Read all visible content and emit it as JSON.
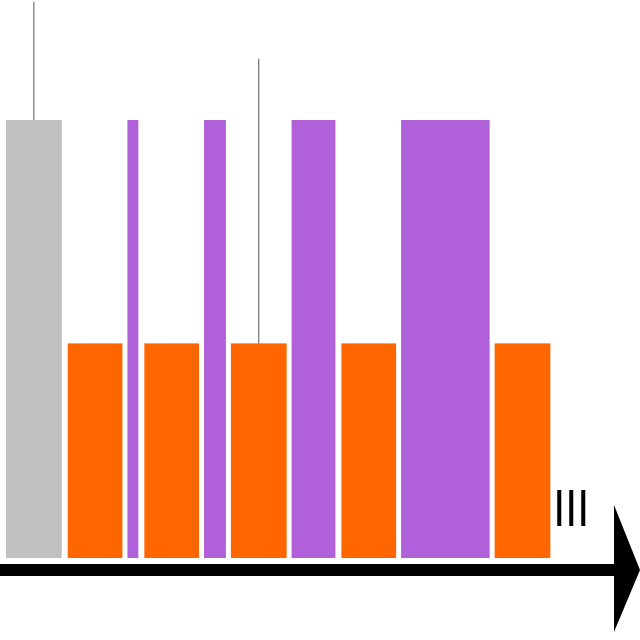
{
  "chart_data": {
    "type": "bar",
    "x_unit": "time",
    "y_unit": "relative height",
    "categories_note": "",
    "colors": {
      "gray": "#c0c0c0",
      "orange": "#ff6600",
      "purple": "#b060d8",
      "axis": "#000000",
      "marker": "#555555"
    },
    "bars": [
      {
        "start": 0.0,
        "end": 0.56,
        "height": 1.0,
        "color": "gray",
        "label": ""
      },
      {
        "start": 0.62,
        "end": 1.17,
        "height": 0.49,
        "color": "orange",
        "label": ""
      },
      {
        "start": 1.22,
        "end": 1.33,
        "height": 1.0,
        "color": "purple",
        "label": ""
      },
      {
        "start": 1.39,
        "end": 1.94,
        "height": 0.49,
        "color": "orange",
        "label": ""
      },
      {
        "start": 1.99,
        "end": 2.21,
        "height": 1.0,
        "color": "purple",
        "label": ""
      },
      {
        "start": 2.26,
        "end": 2.82,
        "height": 0.49,
        "color": "orange",
        "label": ""
      },
      {
        "start": 2.87,
        "end": 3.31,
        "height": 1.0,
        "color": "purple",
        "label": ""
      },
      {
        "start": 3.37,
        "end": 3.92,
        "height": 0.49,
        "color": "orange",
        "label": ""
      },
      {
        "start": 3.97,
        "end": 4.86,
        "height": 1.0,
        "color": "purple",
        "label": ""
      },
      {
        "start": 4.91,
        "end": 5.47,
        "height": 0.49,
        "color": "orange",
        "label": ""
      }
    ],
    "markers": [
      {
        "x": 0.28,
        "top": 1.27,
        "bottom": 1.0
      },
      {
        "x": 2.54,
        "top": 1.14,
        "bottom": 0.49
      }
    ],
    "continuation": {
      "x": 5.7,
      "count": 3
    },
    "xlim": [
      0,
      6.25
    ],
    "ylim": [
      0,
      1.0
    ]
  }
}
